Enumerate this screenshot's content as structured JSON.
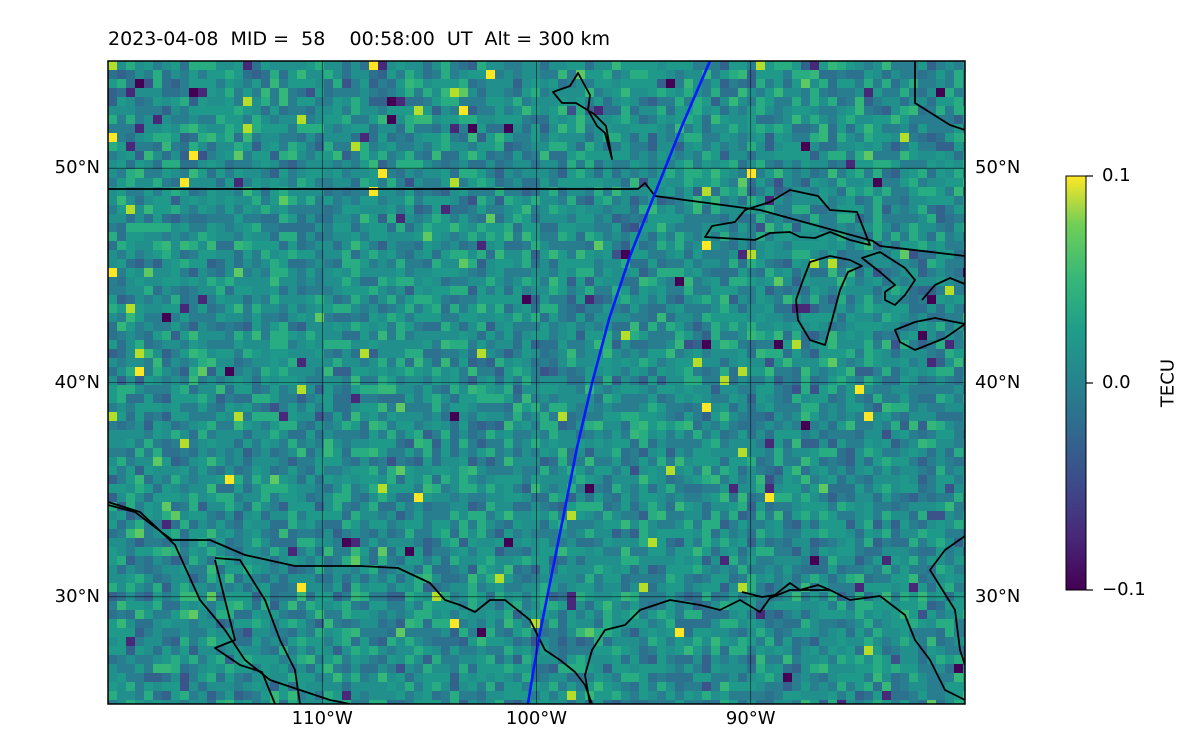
{
  "title": "2023-04-08  MID =  58    00:58:00  UT  Alt = 300 km",
  "map": {
    "lon_range": [
      -120,
      -80
    ],
    "lat_range": [
      25,
      55
    ],
    "gridlines": true,
    "lat_ticks": [
      {
        "value": 30,
        "label": "30°N"
      },
      {
        "value": 40,
        "label": "40°N"
      },
      {
        "value": 50,
        "label": "50°N"
      }
    ],
    "lon_ticks": [
      {
        "value": -110,
        "label": "110°W"
      },
      {
        "value": -100,
        "label": "100°W"
      },
      {
        "value": -90,
        "label": "90°W"
      }
    ],
    "track_color": "#0a1aff",
    "track": [
      [
        -91.9,
        55
      ],
      [
        -93.2,
        52
      ],
      [
        -94.4,
        49
      ],
      [
        -95.6,
        46
      ],
      [
        -96.6,
        43
      ],
      [
        -97.4,
        40
      ],
      [
        -98.1,
        37
      ],
      [
        -98.7,
        34
      ],
      [
        -99.3,
        31
      ],
      [
        -99.9,
        28
      ],
      [
        -100.4,
        25
      ]
    ]
  },
  "colorbar": {
    "label": "TECU",
    "colormap": "viridis",
    "min": -0.1,
    "max": 0.1,
    "ticks": [
      {
        "value": 0.1,
        "label": "0.1"
      },
      {
        "value": 0.0,
        "label": "0.0"
      },
      {
        "value": -0.1,
        "label": "−0.1"
      }
    ]
  }
}
